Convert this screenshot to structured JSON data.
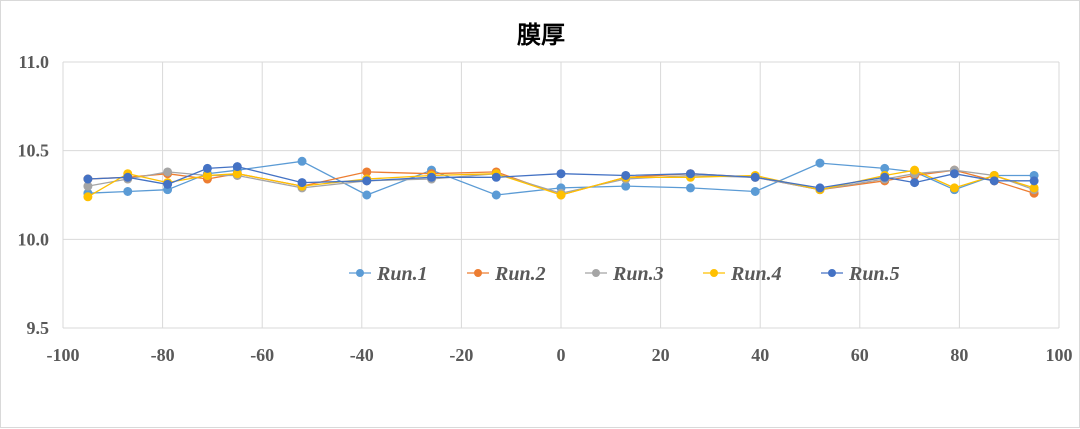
{
  "chart_data": {
    "type": "line",
    "title": "膜厚",
    "xlabel": "",
    "ylabel": "",
    "xlim": [
      -100,
      100
    ],
    "ylim": [
      9.5,
      11.0
    ],
    "xticks": [
      -100,
      -80,
      -60,
      -40,
      -20,
      0,
      20,
      40,
      60,
      80,
      100
    ],
    "yticks": [
      "9.5",
      "10.0",
      "10.5",
      "11.0"
    ],
    "grid": true,
    "legend_position": "inside-center",
    "x": [
      -95,
      -87,
      -79,
      -71,
      -65,
      -52,
      -39,
      -26,
      -13,
      0,
      13,
      26,
      39,
      52,
      65,
      71,
      79,
      87,
      95
    ],
    "series": [
      {
        "name": "Run.1",
        "color": "#5b9bd5",
        "values": [
          10.26,
          10.27,
          10.28,
          10.37,
          10.39,
          10.44,
          10.25,
          10.39,
          10.25,
          10.29,
          10.3,
          10.29,
          10.27,
          10.43,
          10.4,
          10.38,
          10.28,
          10.36,
          10.36
        ]
      },
      {
        "name": "Run.2",
        "color": "#ed7d31",
        "values": [
          10.34,
          10.35,
          10.37,
          10.34,
          10.37,
          10.3,
          10.38,
          10.37,
          10.38,
          10.25,
          10.35,
          10.37,
          10.35,
          10.28,
          10.33,
          10.36,
          10.39,
          10.33,
          10.26
        ]
      },
      {
        "name": "Run.3",
        "color": "#a5a5a5",
        "values": [
          10.3,
          10.34,
          10.38,
          10.36,
          10.36,
          10.29,
          10.33,
          10.34,
          10.37,
          10.26,
          10.34,
          10.36,
          10.35,
          10.28,
          10.34,
          10.37,
          10.39,
          10.36,
          10.28
        ]
      },
      {
        "name": "Run.4",
        "color": "#ffc000",
        "values": [
          10.24,
          10.37,
          10.32,
          10.36,
          10.37,
          10.3,
          10.34,
          10.36,
          10.37,
          10.25,
          10.35,
          10.35,
          10.36,
          10.28,
          10.36,
          10.39,
          10.29,
          10.36,
          10.29
        ]
      },
      {
        "name": "Run.5",
        "color": "#4472c4",
        "values": [
          10.34,
          10.35,
          10.31,
          10.4,
          10.41,
          10.32,
          10.33,
          10.35,
          10.35,
          10.37,
          10.36,
          10.37,
          10.35,
          10.29,
          10.35,
          10.32,
          10.37,
          10.33,
          10.33
        ]
      }
    ]
  }
}
